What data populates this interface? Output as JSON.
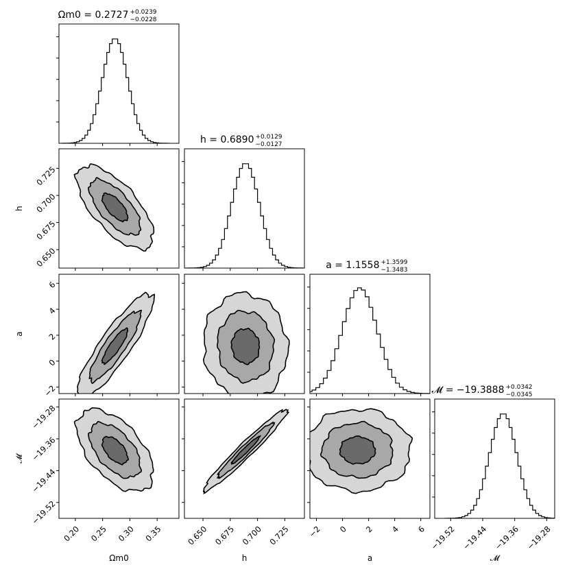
{
  "chart_data": {
    "type": "corner",
    "parameters": [
      {
        "key": "om",
        "name": "Ω_m0",
        "median": 0.2727,
        "plus": 0.0239,
        "minus": 0.0228,
        "title_lhs": "Ωm0 = ",
        "title_value": "0.2727",
        "title_plus": "+0.0239",
        "title_minus": "−0.0228",
        "axis_label": "Ωm0",
        "range": [
          0.17,
          0.39
        ],
        "ticks": [
          0.2,
          0.25,
          0.3,
          0.35
        ],
        "tick_labels": [
          "0.20",
          "0.25",
          "0.30",
          "0.35"
        ]
      },
      {
        "key": "h",
        "name": "h",
        "median": 0.689,
        "plus": 0.0129,
        "minus": 0.0127,
        "title_lhs": "h = ",
        "title_value": "0.6890",
        "title_plus": "+0.0129",
        "title_minus": "−0.0127",
        "axis_label": "h",
        "range": [
          0.633,
          0.743
        ],
        "ticks": [
          0.65,
          0.675,
          0.7,
          0.725
        ],
        "tick_labels": [
          "0.650",
          "0.675",
          "0.700",
          "0.725"
        ]
      },
      {
        "key": "a",
        "name": "a",
        "median": 1.1558,
        "plus": 1.3599,
        "minus": 1.3483,
        "title_lhs": "a = ",
        "title_value": "1.1558",
        "title_plus": "+1.3599",
        "title_minus": "−1.3483",
        "axis_label": "a",
        "range": [
          -2.5,
          6.7
        ],
        "ticks": [
          -2,
          0,
          2,
          4,
          6
        ],
        "tick_labels": [
          "−2",
          "0",
          "2",
          "4",
          "6"
        ]
      },
      {
        "key": "M",
        "name": "𝓜",
        "median": -19.3888,
        "plus": 0.0342,
        "minus": 0.0345,
        "title_lhs": "𝓜 = ",
        "title_value": "−19.3888",
        "title_plus": "+0.0342",
        "title_minus": "−0.0345",
        "axis_label": "𝓜",
        "range": [
          -19.56,
          -19.26
        ],
        "ticks": [
          -19.52,
          -19.44,
          -19.36,
          -19.28
        ],
        "tick_labels": [
          "−19.52",
          "−19.44",
          "−19.36",
          "−19.28"
        ]
      }
    ],
    "correlations": {
      "h|om": -0.68,
      "a|om": 0.88,
      "a|h": -0.05,
      "M|om": -0.55,
      "M|h": 0.97,
      "M|a": 0.0
    },
    "contour_levels_sigma": [
      1,
      2,
      3
    ],
    "contour_fill_colors": [
      "#d6d6d6",
      "#a8a8a8",
      "#6a6a6a"
    ],
    "line_color": "#000000"
  }
}
